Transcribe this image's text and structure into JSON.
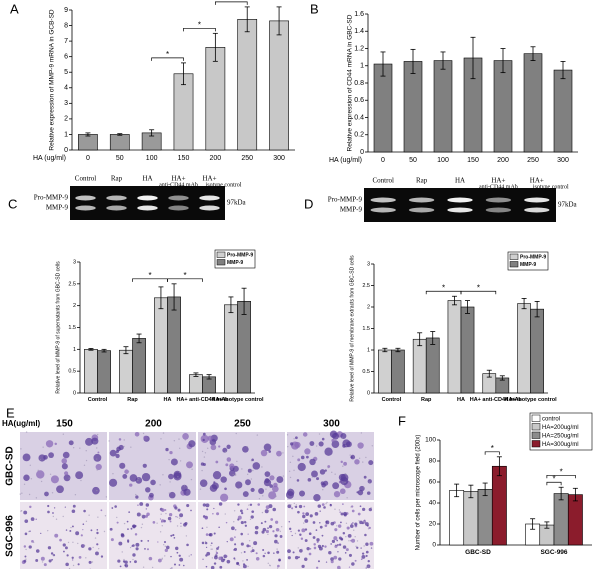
{
  "chart_data": [
    {
      "type": "bar",
      "panel": "A",
      "categories": [
        "0",
        "50",
        "100",
        "150",
        "200",
        "250",
        "300"
      ],
      "values": [
        1.0,
        1.0,
        1.1,
        4.9,
        6.6,
        8.4,
        8.3
      ],
      "errors": [
        0.1,
        0.05,
        0.2,
        0.7,
        0.9,
        0.8,
        0.9
      ],
      "colors": [
        "#9a9a9a",
        "#9a9a9a",
        "#9a9a9a",
        "#c8c8c8",
        "#c8c8c8",
        "#c8c8c8",
        "#c8c8c8"
      ],
      "ylim": [
        0,
        9
      ],
      "yticks": [
        0,
        1,
        2,
        3,
        4,
        5,
        6,
        7,
        8,
        9
      ],
      "xlabel": "HA (ug/ml)",
      "ylabel": "Relative expression of MMP-9 mRNA in GCB-SD",
      "brackets": [
        {
          "between": [
            "100",
            "150"
          ],
          "label": "*"
        },
        {
          "between": [
            "150",
            "200"
          ],
          "label": "*"
        },
        {
          "between": [
            "200",
            "250"
          ],
          "label": "*"
        }
      ]
    },
    {
      "type": "bar",
      "panel": "B",
      "categories": [
        "0",
        "50",
        "100",
        "150",
        "200",
        "250",
        "300"
      ],
      "values": [
        1.02,
        1.05,
        1.06,
        1.09,
        1.06,
        1.14,
        0.95
      ],
      "errors": [
        0.14,
        0.14,
        0.1,
        0.24,
        0.14,
        0.08,
        0.1
      ],
      "color": "#808080",
      "ylim": [
        0,
        1.6
      ],
      "yticks": [
        0,
        0.2,
        0.4,
        0.6,
        0.8,
        1.0,
        1.2,
        1.4,
        1.6
      ],
      "xlabel": "HA (ug/ml)",
      "ylabel": "Relative expression of CD44 mRNA in GBC-SD"
    },
    {
      "type": "bar",
      "categories": [
        "Control",
        "Rap",
        "HA",
        "HA+ anti-CD44 mAb",
        "HA+ isotype control"
      ],
      "series": [
        {
          "name": "Pro-MMP-9",
          "color": "#d0d0d0",
          "values": [
            1.0,
            0.98,
            2.18,
            0.42,
            2.02
          ],
          "errors": [
            0.02,
            0.08,
            0.25,
            0.04,
            0.18
          ]
        },
        {
          "name": "MMP-9",
          "color": "#808080",
          "values": [
            0.97,
            1.25,
            2.2,
            0.37,
            2.1
          ],
          "errors": [
            0.03,
            0.1,
            0.3,
            0.05,
            0.3
          ]
        }
      ],
      "ylim": [
        0,
        3
      ],
      "yticks": [
        0,
        0.5,
        1.0,
        1.5,
        2.0,
        2.5,
        3.0
      ],
      "legend": "upper right",
      "ylabel": "Relative level of MMP-9 of supernatants from GBC-SD cells",
      "brackets": [
        {
          "between": [
            "Rap",
            "HA"
          ],
          "label": "*"
        },
        {
          "between": [
            "HA",
            "HA+ anti-CD44 mAb"
          ],
          "label": "*"
        }
      ]
    },
    {
      "type": "bar",
      "categories": [
        "Control",
        "Rap",
        "HA",
        "HA+ anti-CD44 mAb",
        "HA+ isotype control"
      ],
      "series": [
        {
          "name": "Pro-MMP-9",
          "color": "#d0d0d0",
          "values": [
            1.0,
            1.25,
            2.15,
            0.45,
            2.08
          ],
          "errors": [
            0.04,
            0.15,
            0.1,
            0.08,
            0.12
          ]
        },
        {
          "name": "MMP-9",
          "color": "#808080",
          "values": [
            1.0,
            1.28,
            2.0,
            0.35,
            1.95
          ],
          "errors": [
            0.04,
            0.15,
            0.15,
            0.05,
            0.18
          ]
        }
      ],
      "ylim": [
        0,
        3
      ],
      "yticks": [
        0,
        0.5,
        1.0,
        1.5,
        2.0,
        2.5,
        3.0
      ],
      "legend": "upper right",
      "ylabel": "Relative level of MMP-9 of membrane extracts from GBC-SD cells",
      "brackets": [
        {
          "between": [
            "Rap",
            "HA"
          ],
          "label": "*"
        },
        {
          "between": [
            "HA",
            "HA+ anti-CD44 mAb"
          ],
          "label": "*"
        }
      ]
    },
    {
      "type": "bar",
      "panel": "F",
      "categories": [
        "GBC-SD",
        "SGC-996"
      ],
      "series": [
        {
          "name": "control",
          "color": "#ffffff",
          "values": [
            52,
            20
          ],
          "errors": [
            6,
            5
          ]
        },
        {
          "name": "HA=200ug/ml",
          "color": "#c8c8c8",
          "values": [
            51,
            19
          ],
          "errors": [
            6,
            3
          ]
        },
        {
          "name": "HA=250ug/ml",
          "color": "#8c8c8c",
          "values": [
            53,
            49
          ],
          "errors": [
            6,
            6
          ]
        },
        {
          "name": "HA=300ug/ml",
          "color": "#8b1c2c",
          "values": [
            75,
            48
          ],
          "errors": [
            9,
            6
          ]
        }
      ],
      "ylim": [
        0,
        100
      ],
      "yticks": [
        0,
        20,
        40,
        60,
        80,
        100
      ],
      "legend": "upper right",
      "ylabel": "Number of cells per microscope field (200x)",
      "brackets": [
        {
          "category": "GBC-SD",
          "between": [
            "HA=250ug/ml",
            "HA=300ug/ml"
          ],
          "label": "*"
        },
        {
          "category": "SGC-996",
          "between": [
            "HA=200ug/ml",
            "HA=250ug/ml"
          ],
          "label": "*"
        },
        {
          "category": "SGC-996",
          "between": [
            "HA=200ug/ml",
            "HA=300ug/ml"
          ],
          "label": "*"
        }
      ]
    }
  ],
  "gels": [
    {
      "panel": "C",
      "lanes": [
        "Control",
        "Rap",
        "HA",
        "HA+",
        "HA+"
      ],
      "lane_notes": [
        "anti-CD44 mAb",
        "isotype control"
      ],
      "bands": [
        "Pro-MMP-9",
        "MMP-9"
      ],
      "size": "97kDa"
    },
    {
      "panel": "D",
      "lanes": [
        "Control",
        "Rap",
        "HA",
        "HA+",
        "HA+"
      ],
      "lane_notes": [
        "anti-CD44 mAb",
        "isotype control"
      ],
      "bands": [
        "Pro-MMP-9",
        "MMP-9"
      ],
      "size": "97kDa"
    }
  ],
  "micrographs": {
    "panel": "E",
    "unit": "HA(ug/ml)",
    "columns": [
      "150",
      "200",
      "250",
      "300"
    ],
    "rows": [
      "GBC-SD",
      "SGC-996"
    ]
  }
}
